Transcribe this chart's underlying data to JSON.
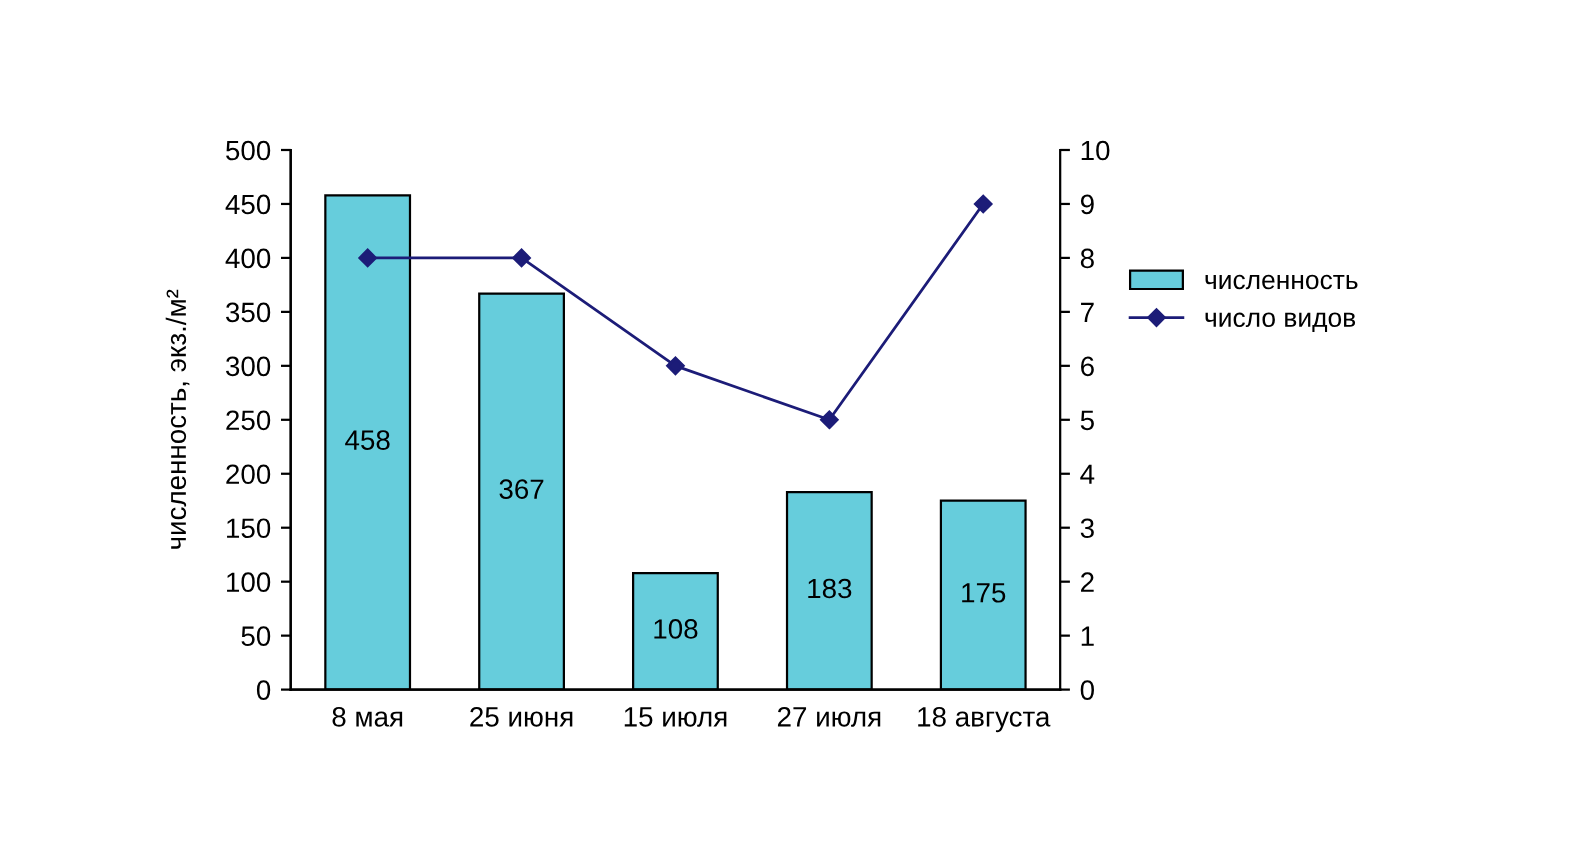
{
  "chart_data": {
    "type": "bar",
    "ylabel": "численность, экз./м²",
    "categories": [
      "8 мая",
      "25 июня",
      "15 июля",
      "27 июля",
      "18 августа"
    ],
    "series": [
      {
        "name": "численность",
        "color": "#66cddc",
        "values": [
          458,
          367,
          108,
          183,
          175
        ],
        "value_labels": [
          "458",
          "367",
          "108",
          "183",
          "175"
        ]
      },
      {
        "name": "число видов",
        "type": "line",
        "axis": "y2",
        "color": "#1c1c78",
        "values": [
          8,
          8,
          6,
          5,
          9
        ],
        "marker": "diamond",
        "line_style": "solid"
      }
    ],
    "ylim": [
      0,
      500
    ],
    "yticks": [
      0,
      50,
      100,
      150,
      200,
      250,
      300,
      350,
      400,
      450,
      500
    ],
    "y2lim": [
      0,
      10
    ],
    "y2ticks": [
      0,
      1,
      2,
      3,
      4,
      5,
      6,
      7,
      8,
      9,
      10
    ],
    "grid": false,
    "legend": "right"
  }
}
